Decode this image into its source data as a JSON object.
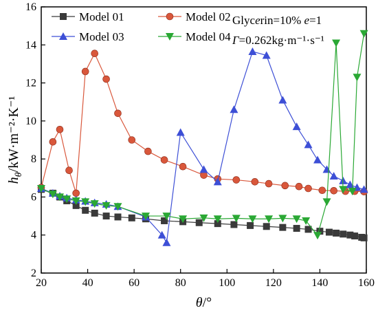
{
  "chart_data": {
    "type": "line",
    "xlabel": "θ/°",
    "ylabel": "hθ/kW·m⁻²·K⁻¹",
    "xlim": [
      20,
      160
    ],
    "ylim": [
      2,
      16
    ],
    "xticks": [
      20,
      40,
      60,
      80,
      100,
      120,
      140,
      160
    ],
    "yticks": [
      2,
      4,
      6,
      8,
      10,
      12,
      14,
      16
    ],
    "grid": false,
    "legend_position": "top-left",
    "annotations": [
      "Glycerin=10% e=1",
      "Γ=0.262kg·m⁻¹·s⁻¹"
    ],
    "series": [
      {
        "name": "Model 01",
        "color": "#3a3a3a",
        "marker": "square",
        "points": [
          [
            20,
            6.4
          ],
          [
            25,
            6.2
          ],
          [
            28,
            6.0
          ],
          [
            31,
            5.8
          ],
          [
            35,
            5.55
          ],
          [
            39,
            5.3
          ],
          [
            43,
            5.15
          ],
          [
            48,
            5.0
          ],
          [
            53,
            4.95
          ],
          [
            59,
            4.9
          ],
          [
            65,
            4.85
          ],
          [
            73,
            4.75
          ],
          [
            81,
            4.7
          ],
          [
            88,
            4.65
          ],
          [
            96,
            4.6
          ],
          [
            103,
            4.55
          ],
          [
            110,
            4.5
          ],
          [
            117,
            4.45
          ],
          [
            124,
            4.4
          ],
          [
            130,
            4.35
          ],
          [
            135,
            4.3
          ],
          [
            140,
            4.2
          ],
          [
            144,
            4.15
          ],
          [
            147,
            4.1
          ],
          [
            150,
            4.05
          ],
          [
            153,
            4.0
          ],
          [
            155,
            3.95
          ],
          [
            158,
            3.88
          ],
          [
            159,
            3.85
          ]
        ]
      },
      {
        "name": "Model 02",
        "color": "#d9573b",
        "marker": "circle",
        "points": [
          [
            20,
            6.5
          ],
          [
            25,
            8.9
          ],
          [
            28,
            9.55
          ],
          [
            32,
            7.4
          ],
          [
            35,
            6.2
          ],
          [
            39,
            12.6
          ],
          [
            43,
            13.55
          ],
          [
            48,
            12.2
          ],
          [
            53,
            10.4
          ],
          [
            59,
            9.0
          ],
          [
            66,
            8.4
          ],
          [
            73,
            7.95
          ],
          [
            81,
            7.6
          ],
          [
            90,
            7.15
          ],
          [
            96,
            6.95
          ],
          [
            104,
            6.9
          ],
          [
            112,
            6.8
          ],
          [
            118,
            6.7
          ],
          [
            125,
            6.6
          ],
          [
            131,
            6.55
          ],
          [
            135,
            6.45
          ],
          [
            141,
            6.35
          ],
          [
            146,
            6.33
          ],
          [
            151,
            6.3
          ],
          [
            155,
            6.3
          ],
          [
            159,
            6.28
          ]
        ]
      },
      {
        "name": "Model 03",
        "color": "#3d4fd6",
        "marker": "triangle-up",
        "points": [
          [
            20,
            6.45
          ],
          [
            25,
            6.2
          ],
          [
            28,
            6.05
          ],
          [
            31,
            5.95
          ],
          [
            35,
            5.85
          ],
          [
            39,
            5.78
          ],
          [
            43,
            5.7
          ],
          [
            48,
            5.62
          ],
          [
            53,
            5.5
          ],
          [
            65,
            4.95
          ],
          [
            72,
            4.0
          ],
          [
            74,
            3.6
          ],
          [
            80,
            9.4
          ],
          [
            90,
            7.45
          ],
          [
            96,
            6.8
          ],
          [
            103,
            10.6
          ],
          [
            111,
            13.65
          ],
          [
            117,
            13.45
          ],
          [
            124,
            11.1
          ],
          [
            130,
            9.7
          ],
          [
            135,
            8.75
          ],
          [
            139,
            7.95
          ],
          [
            143,
            7.45
          ],
          [
            146,
            7.1
          ],
          [
            150,
            6.85
          ],
          [
            153,
            6.65
          ],
          [
            156,
            6.5
          ],
          [
            159,
            6.4
          ]
        ]
      },
      {
        "name": "Model 04",
        "color": "#2aa834",
        "marker": "triangle-down",
        "points": [
          [
            20,
            6.45
          ],
          [
            25,
            6.15
          ],
          [
            28,
            6.0
          ],
          [
            31,
            5.9
          ],
          [
            35,
            5.8
          ],
          [
            39,
            5.75
          ],
          [
            43,
            5.65
          ],
          [
            48,
            5.55
          ],
          [
            53,
            5.5
          ],
          [
            65,
            5.0
          ],
          [
            74,
            5.0
          ],
          [
            81,
            4.85
          ],
          [
            90,
            4.9
          ],
          [
            96,
            4.85
          ],
          [
            104,
            4.88
          ],
          [
            111,
            4.85
          ],
          [
            118,
            4.85
          ],
          [
            124,
            4.88
          ],
          [
            130,
            4.85
          ],
          [
            134,
            4.75
          ],
          [
            139,
            3.98
          ],
          [
            143,
            5.75
          ],
          [
            147,
            14.1
          ],
          [
            150,
            6.4
          ],
          [
            154,
            6.3
          ],
          [
            156,
            12.3
          ],
          [
            159,
            14.6
          ]
        ]
      }
    ]
  }
}
